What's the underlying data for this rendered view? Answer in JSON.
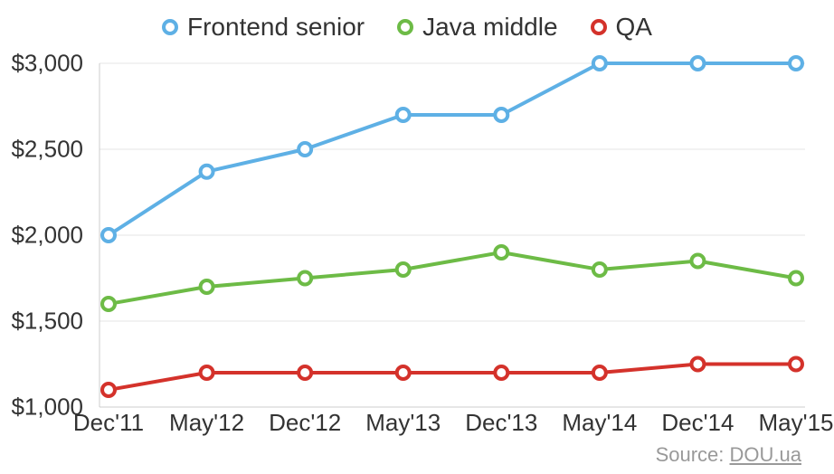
{
  "chart": {
    "type": "line",
    "background_color": "#ffffff",
    "grid_color": "#e6e6e6",
    "axis_color": "#cccccc",
    "label_color": "#333333",
    "label_fontsize": 26,
    "legend_fontsize": 28,
    "line_width": 4,
    "marker_radius": 7,
    "marker_stroke_width": 4,
    "marker_fill": "#ffffff",
    "xlim": [
      0,
      7
    ],
    "ylim": [
      1000,
      3000
    ],
    "ytick_step": 500,
    "y_ticks": [
      1000,
      1500,
      2000,
      2500,
      3000
    ],
    "y_tick_labels": [
      "$1,000",
      "$1,500",
      "$2,000",
      "$2,500",
      "$3,000"
    ],
    "x_categories": [
      "Dec'11",
      "May'12",
      "Dec'12",
      "May'13",
      "Dec'13",
      "May'14",
      "Dec'14",
      "May'15"
    ],
    "series": [
      {
        "name": "Frontend senior",
        "color": "#5eb0e5",
        "values": [
          2000,
          2370,
          2500,
          2700,
          2700,
          3000,
          3000,
          3000
        ]
      },
      {
        "name": "Java middle",
        "color": "#6dbb46",
        "values": [
          1600,
          1700,
          1750,
          1800,
          1900,
          1800,
          1850,
          1750
        ]
      },
      {
        "name": "QA",
        "color": "#d4322b",
        "values": [
          1100,
          1200,
          1200,
          1200,
          1200,
          1200,
          1250,
          1250
        ]
      }
    ]
  },
  "source": {
    "prefix": "Source: ",
    "link_text": "DOU.ua"
  }
}
